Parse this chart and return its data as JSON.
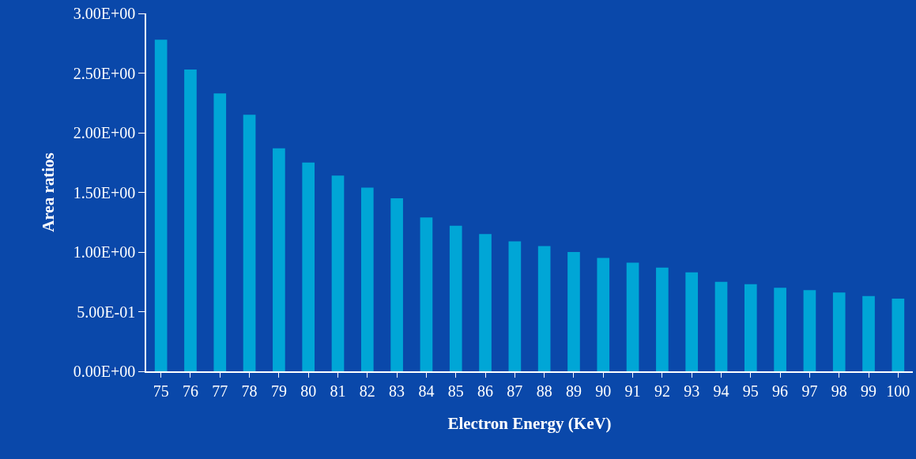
{
  "chart_data": {
    "type": "bar",
    "xlabel": "Electron Energy (KeV)",
    "ylabel": "Area ratios",
    "categories": [
      "75",
      "76",
      "77",
      "78",
      "79",
      "80",
      "81",
      "82",
      "83",
      "84",
      "85",
      "86",
      "87",
      "88",
      "89",
      "90",
      "91",
      "92",
      "93",
      "94",
      "95",
      "96",
      "97",
      "98",
      "99",
      "100"
    ],
    "values": [
      2.78,
      2.53,
      2.33,
      2.15,
      1.87,
      1.75,
      1.64,
      1.54,
      1.45,
      1.29,
      1.22,
      1.15,
      1.09,
      1.05,
      1.0,
      0.95,
      0.91,
      0.87,
      0.83,
      0.75,
      0.73,
      0.7,
      0.68,
      0.66,
      0.63,
      0.61
    ],
    "color": "#00a6d6",
    "ylim": [
      0,
      3
    ],
    "yticks": [
      {
        "value": 0,
        "label": "0.00E+00"
      },
      {
        "value": 0.5,
        "label": "5.00E-01"
      },
      {
        "value": 1,
        "label": "1.00E+00"
      },
      {
        "value": 1.5,
        "label": "1.50E+00"
      },
      {
        "value": 2,
        "label": "2.00E+00"
      },
      {
        "value": 2.5,
        "label": "2.50E+00"
      },
      {
        "value": 3,
        "label": "3.00E+00"
      }
    ],
    "grid": false
  }
}
